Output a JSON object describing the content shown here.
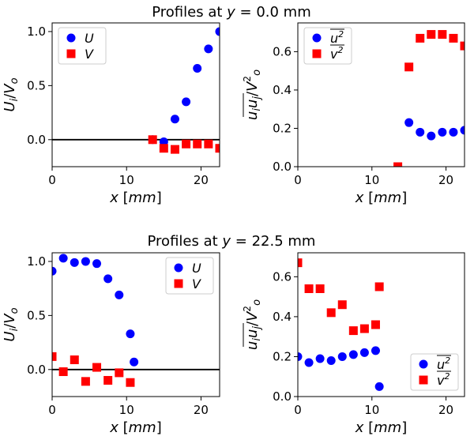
{
  "figure": {
    "row_titles": [
      {
        "prefix": "Profiles at ",
        "var": "y",
        "rest": " = 0.0 mm"
      },
      {
        "prefix": "Profiles at ",
        "var": "y",
        "rest": " = 22.5 mm"
      }
    ]
  },
  "colors": {
    "blue": "#0000ff",
    "red": "#ff0000",
    "zero_line": "#000000"
  },
  "chart_data": [
    {
      "type": "scatter",
      "title": "Profiles at y = 0.0 mm",
      "xlabel": "x [mm]",
      "ylabel": "U_i/V_o",
      "xlim": [
        0,
        22.5
      ],
      "ylim": [
        -0.25,
        1.08
      ],
      "xticks": [
        0,
        10,
        20
      ],
      "yticks": [
        0.0,
        0.5,
        1.0
      ],
      "zero_line": true,
      "legend": "top-left",
      "series": [
        {
          "name": "U",
          "color": "blue",
          "marker": "circle",
          "x": [
            13.5,
            15.0,
            16.5,
            18.0,
            19.5,
            21.0,
            22.5
          ],
          "y": [
            0.0,
            -0.02,
            0.19,
            0.35,
            0.66,
            0.84,
            1.0
          ]
        },
        {
          "name": "V",
          "color": "red",
          "marker": "square",
          "x": [
            13.5,
            15.0,
            16.5,
            18.0,
            19.5,
            21.0,
            22.5
          ],
          "y": [
            0.0,
            -0.08,
            -0.09,
            -0.04,
            -0.04,
            -0.04,
            -0.08
          ]
        }
      ]
    },
    {
      "type": "scatter",
      "title": "",
      "xlabel": "x [mm]",
      "ylabel": "u_i u_j / V_o^2",
      "xlim": [
        0,
        22.5
      ],
      "ylim": [
        0,
        0.75
      ],
      "xticks": [
        0,
        10,
        20
      ],
      "yticks": [
        0.0,
        0.2,
        0.4,
        0.6
      ],
      "zero_line": false,
      "legend": "top-left",
      "series": [
        {
          "name": "u^2",
          "color": "blue",
          "marker": "circle",
          "x": [
            15.0,
            16.5,
            18.0,
            19.5,
            21.0,
            22.5
          ],
          "y": [
            0.23,
            0.18,
            0.16,
            0.18,
            0.18,
            0.19
          ]
        },
        {
          "name": "v^2",
          "color": "red",
          "marker": "square",
          "x": [
            13.5,
            15.0,
            16.5,
            18.0,
            19.5,
            21.0,
            22.5
          ],
          "y": [
            0.0,
            0.52,
            0.67,
            0.69,
            0.69,
            0.67,
            0.63
          ]
        }
      ]
    },
    {
      "type": "scatter",
      "title": "Profiles at y = 22.5 mm",
      "xlabel": "x [mm]",
      "ylabel": "U_i/V_o",
      "xlim": [
        0,
        22.5
      ],
      "ylim": [
        -0.25,
        1.08
      ],
      "xticks": [
        0,
        10,
        20
      ],
      "yticks": [
        0.0,
        0.5,
        1.0
      ],
      "zero_line": true,
      "legend": "top-right",
      "series": [
        {
          "name": "U",
          "color": "blue",
          "marker": "circle",
          "x": [
            0.0,
            1.5,
            3.0,
            4.5,
            6.0,
            7.5,
            9.0,
            10.5,
            11.0
          ],
          "y": [
            0.91,
            1.03,
            0.99,
            1.0,
            0.98,
            0.84,
            0.69,
            0.33,
            0.07
          ]
        },
        {
          "name": "V",
          "color": "red",
          "marker": "square",
          "x": [
            0.0,
            1.5,
            3.0,
            4.5,
            6.0,
            7.5,
            9.0,
            10.5
          ],
          "y": [
            0.12,
            -0.02,
            0.09,
            -0.11,
            0.02,
            -0.1,
            -0.03,
            -0.12
          ]
        }
      ]
    },
    {
      "type": "scatter",
      "title": "",
      "xlabel": "x [mm]",
      "ylabel": "u_i u_j / V_o^2",
      "xlim": [
        0,
        22.5
      ],
      "ylim": [
        0,
        0.72
      ],
      "xticks": [
        0,
        10,
        20
      ],
      "yticks": [
        0.0,
        0.2,
        0.4,
        0.6
      ],
      "zero_line": false,
      "legend": "bottom-right",
      "series": [
        {
          "name": "u^2",
          "color": "blue",
          "marker": "circle",
          "x": [
            0.0,
            1.5,
            3.0,
            4.5,
            6.0,
            7.5,
            9.0,
            10.5,
            11.0
          ],
          "y": [
            0.2,
            0.17,
            0.19,
            0.18,
            0.2,
            0.21,
            0.22,
            0.23,
            0.05
          ]
        },
        {
          "name": "v^2",
          "color": "red",
          "marker": "square",
          "x": [
            0.0,
            1.5,
            3.0,
            4.5,
            6.0,
            7.5,
            9.0,
            10.5,
            11.0
          ],
          "y": [
            0.67,
            0.54,
            0.54,
            0.42,
            0.46,
            0.33,
            0.34,
            0.36,
            0.55
          ]
        }
      ]
    }
  ]
}
